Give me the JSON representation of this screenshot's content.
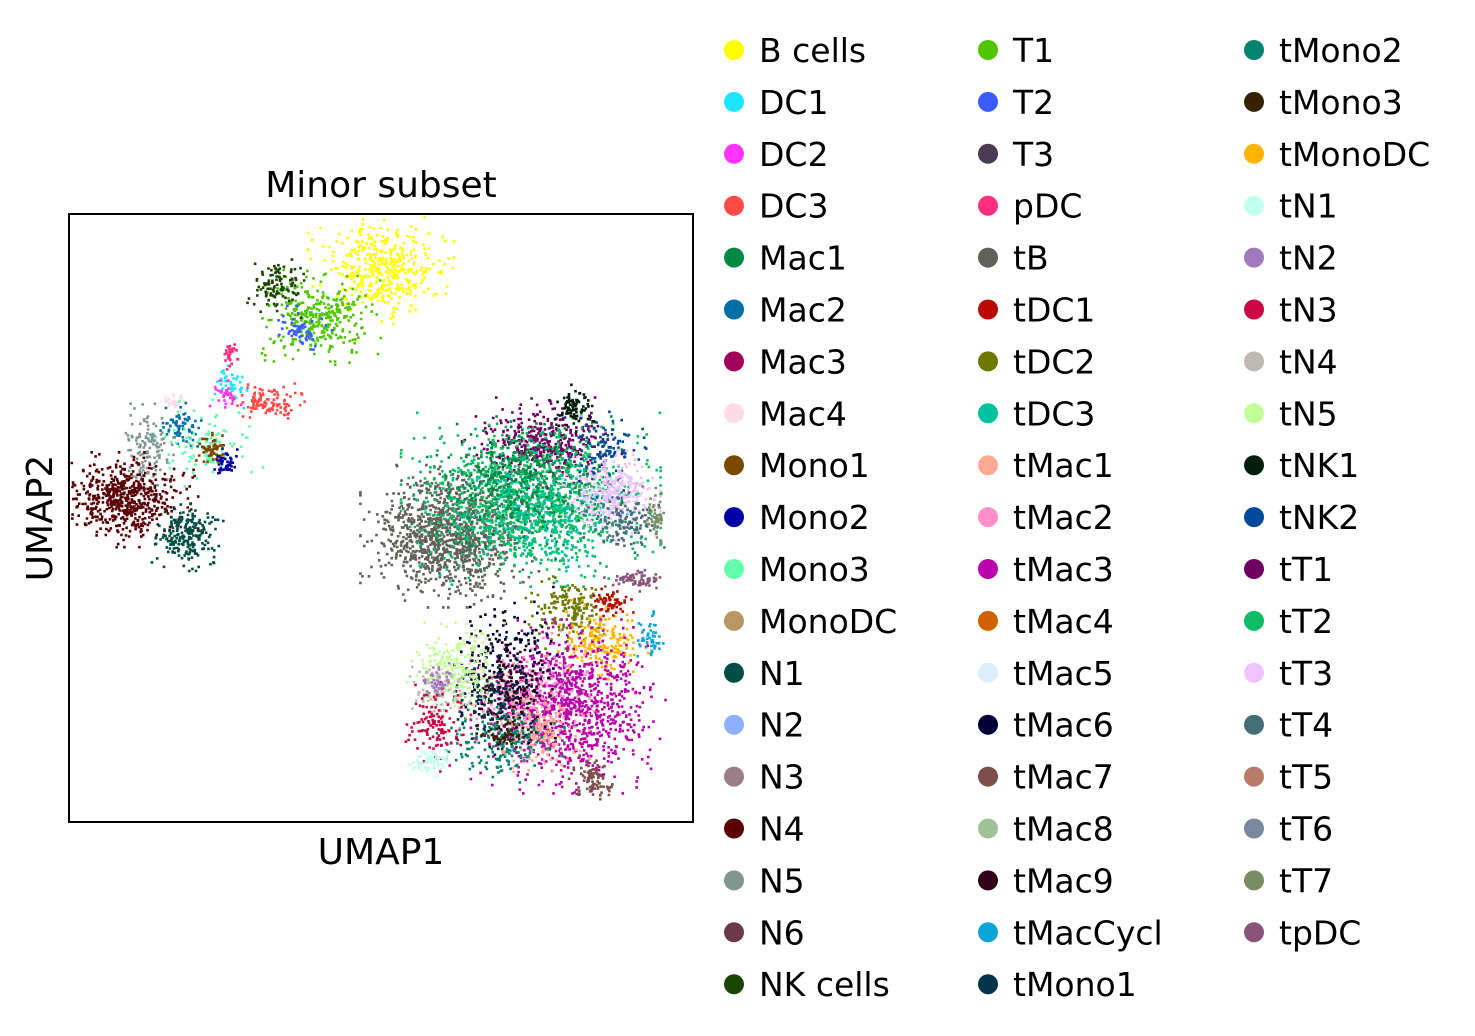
{
  "chart_data": {
    "type": "scatter",
    "title": "Minor subset",
    "xlabel": "UMAP1",
    "ylabel": "UMAP2",
    "xlim": [
      0,
      10
    ],
    "ylim": [
      0,
      10
    ],
    "grid": false,
    "ticks_shown": false,
    "legend_placement": "right, 3 columns",
    "legend": [
      {
        "name": "B cells",
        "color": "#FFFF00"
      },
      {
        "name": "DC1",
        "color": "#1CE6FF"
      },
      {
        "name": "DC2",
        "color": "#FF34FF"
      },
      {
        "name": "DC3",
        "color": "#FF4A46"
      },
      {
        "name": "Mac1",
        "color": "#008941"
      },
      {
        "name": "Mac2",
        "color": "#006FA6"
      },
      {
        "name": "Mac3",
        "color": "#A30059"
      },
      {
        "name": "Mac4",
        "color": "#FFDBE5"
      },
      {
        "name": "Mono1",
        "color": "#7A4900"
      },
      {
        "name": "Mono2",
        "color": "#0000A6"
      },
      {
        "name": "Mono3",
        "color": "#63FFAC"
      },
      {
        "name": "MonoDC",
        "color": "#B79762"
      },
      {
        "name": "N1",
        "color": "#004D43"
      },
      {
        "name": "N2",
        "color": "#8FB0FF"
      },
      {
        "name": "N3",
        "color": "#997D87"
      },
      {
        "name": "N4",
        "color": "#5A0007"
      },
      {
        "name": "N5",
        "color": "#809693"
      },
      {
        "name": "N6",
        "color": "#6A3A4C"
      },
      {
        "name": "NK cells",
        "color": "#1B4400"
      },
      {
        "name": "T1",
        "color": "#4FC601"
      },
      {
        "name": "T2",
        "color": "#3B5DFF"
      },
      {
        "name": "T3",
        "color": "#4A3B53"
      },
      {
        "name": "pDC",
        "color": "#FF2F80"
      },
      {
        "name": "tB",
        "color": "#61615A"
      },
      {
        "name": "tDC1",
        "color": "#BA0900"
      },
      {
        "name": "tDC2",
        "color": "#6B7900"
      },
      {
        "name": "tDC3",
        "color": "#00C2A0"
      },
      {
        "name": "tMac1",
        "color": "#FFAA92"
      },
      {
        "name": "tMac2",
        "color": "#FF90C9"
      },
      {
        "name": "tMac3",
        "color": "#B903AA"
      },
      {
        "name": "tMac4",
        "color": "#D16100"
      },
      {
        "name": "tMac5",
        "color": "#DDEFFF"
      },
      {
        "name": "tMac6",
        "color": "#000035"
      },
      {
        "name": "tMac7",
        "color": "#7B4F4B"
      },
      {
        "name": "tMac8",
        "color": "#A1C299"
      },
      {
        "name": "tMac9",
        "color": "#300018"
      },
      {
        "name": "tMacCycl",
        "color": "#0AA6D8"
      },
      {
        "name": "tMono1",
        "color": "#013349"
      },
      {
        "name": "tMono2",
        "color": "#00846F"
      },
      {
        "name": "tMono3",
        "color": "#372101"
      },
      {
        "name": "tMonoDC",
        "color": "#FFB500"
      },
      {
        "name": "tN1",
        "color": "#C2FFED"
      },
      {
        "name": "tN2",
        "color": "#A079BF"
      },
      {
        "name": "tN3",
        "color": "#CC0744"
      },
      {
        "name": "tN4",
        "color": "#C0B9B2"
      },
      {
        "name": "tN5",
        "color": "#C2FF99"
      },
      {
        "name": "tNK1",
        "color": "#001E09"
      },
      {
        "name": "tNK2",
        "color": "#00489C"
      },
      {
        "name": "tT1",
        "color": "#6F0062"
      },
      {
        "name": "tT2",
        "color": "#0CBD66"
      },
      {
        "name": "tT3",
        "color": "#EEC3FF"
      },
      {
        "name": "tT4",
        "color": "#456D75"
      },
      {
        "name": "tT5",
        "color": "#B77B68"
      },
      {
        "name": "tT6",
        "color": "#7A87A1"
      },
      {
        "name": "tT7",
        "color": "#788D66"
      },
      {
        "name": "tpDC",
        "color": "#885578"
      }
    ],
    "clusters": [
      {
        "label": "B cells",
        "center": [
          5.0,
          9.1
        ],
        "spread": [
          0.45,
          0.35
        ],
        "n": 420
      },
      {
        "label": "T1",
        "center": [
          4.0,
          8.3
        ],
        "spread": [
          0.4,
          0.3
        ],
        "n": 330
      },
      {
        "label": "NK cells",
        "center": [
          3.3,
          8.8
        ],
        "spread": [
          0.18,
          0.22
        ],
        "n": 110
      },
      {
        "label": "T2",
        "center": [
          3.7,
          8.1
        ],
        "spread": [
          0.2,
          0.15
        ],
        "n": 60
      },
      {
        "label": "DC1",
        "center": [
          2.6,
          7.2
        ],
        "spread": [
          0.12,
          0.15
        ],
        "n": 50
      },
      {
        "label": "DC2",
        "center": [
          2.5,
          7.0
        ],
        "spread": [
          0.1,
          0.1
        ],
        "n": 30
      },
      {
        "label": "pDC",
        "center": [
          2.6,
          7.7
        ],
        "spread": [
          0.05,
          0.1
        ],
        "n": 30
      },
      {
        "label": "DC3",
        "center": [
          3.2,
          6.9
        ],
        "spread": [
          0.25,
          0.12
        ],
        "n": 110
      },
      {
        "label": "Mac4",
        "center": [
          1.7,
          6.9
        ],
        "spread": [
          0.1,
          0.08
        ],
        "n": 25
      },
      {
        "label": "Mac2",
        "center": [
          1.8,
          6.5
        ],
        "spread": [
          0.15,
          0.15
        ],
        "n": 70
      },
      {
        "label": "Mono3",
        "center": [
          2.2,
          6.2
        ],
        "spread": [
          0.35,
          0.3
        ],
        "n": 100
      },
      {
        "label": "Mono1",
        "center": [
          2.3,
          6.1
        ],
        "spread": [
          0.1,
          0.12
        ],
        "n": 60
      },
      {
        "label": "Mono2",
        "center": [
          2.5,
          5.9
        ],
        "spread": [
          0.1,
          0.1
        ],
        "n": 45
      },
      {
        "label": "N5",
        "center": [
          1.3,
          6.1
        ],
        "spread": [
          0.2,
          0.3
        ],
        "n": 130
      },
      {
        "label": "N4",
        "center": [
          0.9,
          5.3
        ],
        "spread": [
          0.45,
          0.3
        ],
        "n": 600
      },
      {
        "label": "N1",
        "center": [
          1.9,
          4.7
        ],
        "spread": [
          0.22,
          0.22
        ],
        "n": 230
      },
      {
        "label": "tB",
        "center": [
          6.1,
          4.7
        ],
        "spread": [
          0.55,
          0.45
        ],
        "n": 1100
      },
      {
        "label": "tT1",
        "center": [
          7.6,
          6.2
        ],
        "spread": [
          0.5,
          0.3
        ],
        "n": 450
      },
      {
        "label": "tT2",
        "center": [
          7.4,
          5.3
        ],
        "spread": [
          0.8,
          0.55
        ],
        "n": 1300
      },
      {
        "label": "Mac1",
        "center": [
          7.3,
          5.5
        ],
        "spread": [
          0.6,
          0.45
        ],
        "n": 400
      },
      {
        "label": "tDC3",
        "center": [
          7.5,
          5.0
        ],
        "spread": [
          0.6,
          0.4
        ],
        "n": 250
      },
      {
        "label": "tNK1",
        "center": [
          8.1,
          6.8
        ],
        "spread": [
          0.12,
          0.15
        ],
        "n": 90
      },
      {
        "label": "tNK2",
        "center": [
          8.6,
          6.1
        ],
        "spread": [
          0.25,
          0.3
        ],
        "n": 110
      },
      {
        "label": "tT3",
        "center": [
          8.7,
          5.4
        ],
        "spread": [
          0.3,
          0.3
        ],
        "n": 320
      },
      {
        "label": "tT4",
        "center": [
          8.9,
          4.9
        ],
        "spread": [
          0.25,
          0.2
        ],
        "n": 120
      },
      {
        "label": "tT7",
        "center": [
          9.4,
          5.0
        ],
        "spread": [
          0.08,
          0.2
        ],
        "n": 50
      },
      {
        "label": "tpDC",
        "center": [
          9.1,
          4.0
        ],
        "spread": [
          0.2,
          0.08
        ],
        "n": 70
      },
      {
        "label": "tDC2",
        "center": [
          8.1,
          3.5
        ],
        "spread": [
          0.3,
          0.25
        ],
        "n": 180
      },
      {
        "label": "tMonoDC",
        "center": [
          8.5,
          3.0
        ],
        "spread": [
          0.3,
          0.25
        ],
        "n": 200
      },
      {
        "label": "tDC1",
        "center": [
          8.7,
          3.6
        ],
        "spread": [
          0.15,
          0.1
        ],
        "n": 60
      },
      {
        "label": "tMacCycl",
        "center": [
          9.3,
          3.0
        ],
        "spread": [
          0.1,
          0.2
        ],
        "n": 50
      },
      {
        "label": "tMac3",
        "center": [
          8.0,
          1.9
        ],
        "spread": [
          0.6,
          0.55
        ],
        "n": 1100
      },
      {
        "label": "tMac2",
        "center": [
          7.3,
          2.1
        ],
        "spread": [
          0.4,
          0.4
        ],
        "n": 260
      },
      {
        "label": "tMac1",
        "center": [
          7.5,
          1.5
        ],
        "spread": [
          0.35,
          0.3
        ],
        "n": 200
      },
      {
        "label": "tMac6",
        "center": [
          7.1,
          2.6
        ],
        "spread": [
          0.4,
          0.5
        ],
        "n": 200
      },
      {
        "label": "tMac9",
        "center": [
          7.0,
          2.2
        ],
        "spread": [
          0.35,
          0.4
        ],
        "n": 150
      },
      {
        "label": "tMono2",
        "center": [
          6.9,
          1.3
        ],
        "spread": [
          0.4,
          0.25
        ],
        "n": 180
      },
      {
        "label": "tMono1",
        "center": [
          6.8,
          2.0
        ],
        "spread": [
          0.3,
          0.4
        ],
        "n": 120
      },
      {
        "label": "tMono3",
        "center": [
          7.0,
          1.4
        ],
        "spread": [
          0.2,
          0.12
        ],
        "n": 60
      },
      {
        "label": "tMac7",
        "center": [
          8.4,
          0.7
        ],
        "spread": [
          0.15,
          0.15
        ],
        "n": 90
      },
      {
        "label": "tN5",
        "center": [
          6.2,
          2.5
        ],
        "spread": [
          0.3,
          0.3
        ],
        "n": 250
      },
      {
        "label": "tN4",
        "center": [
          5.9,
          2.2
        ],
        "spread": [
          0.2,
          0.2
        ],
        "n": 90
      },
      {
        "label": "tN3",
        "center": [
          5.9,
          1.6
        ],
        "spread": [
          0.2,
          0.3
        ],
        "n": 120
      },
      {
        "label": "tN1",
        "center": [
          5.8,
          1.0
        ],
        "spread": [
          0.15,
          0.1
        ],
        "n": 70
      },
      {
        "label": "tN2",
        "center": [
          5.9,
          2.3
        ],
        "spread": [
          0.12,
          0.12
        ],
        "n": 40
      }
    ]
  }
}
